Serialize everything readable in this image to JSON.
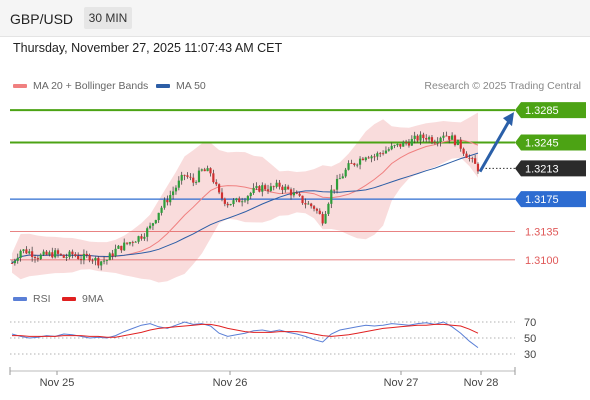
{
  "header": {
    "pair": "GBP/USD",
    "timeframe": "30 MIN"
  },
  "datetime": "Thursday, November 27, 2025 11:07:43 AM CET",
  "legend": {
    "ma20_label": "MA 20 + Bollinger Bands",
    "ma50_label": "MA 50",
    "rsi_label": "RSI",
    "ma9_label": "9MA"
  },
  "credit": "Research © 2025 Trading Central",
  "colors": {
    "resistance": "#4ca314",
    "support": "#2d6cd1",
    "target_support": "#e05a5a",
    "current": "#2b2b2b",
    "arrow": "#2a5fa8",
    "bollinger": "#f7d0d0",
    "ma20": "#f08080",
    "ma50": "#2d5ea6",
    "rsi": "#5a7fd6",
    "rsi_ma": "#e02020"
  },
  "chart_data": [
    {
      "type": "candlestick",
      "x_labels": [
        "Nov 25",
        "Nov 26",
        "Nov 27",
        "Nov 28"
      ],
      "price_levels": [
        {
          "value": 1.3285,
          "label": "1.3285",
          "kind": "resistance"
        },
        {
          "value": 1.3245,
          "label": "1.3245",
          "kind": "resistance"
        },
        {
          "value": 1.3213,
          "label": "1.3213",
          "kind": "current"
        },
        {
          "value": 1.3175,
          "label": "1.3175",
          "kind": "pivot"
        },
        {
          "value": 1.3135,
          "label": "1.3135",
          "kind": "support"
        },
        {
          "value": 1.31,
          "label": "1.3100",
          "kind": "support"
        }
      ],
      "ylim": [
        1.3085,
        1.3295
      ],
      "series": [
        {
          "name": "MA 20 + Bollinger Bands"
        },
        {
          "name": "MA 50"
        }
      ],
      "price_path": [
        1.3096,
        1.3112,
        1.311,
        1.3104,
        1.3106,
        1.3108,
        1.3103,
        1.3107,
        1.3102,
        1.3104,
        1.3098,
        1.31,
        1.3112,
        1.3118,
        1.3124,
        1.313,
        1.314,
        1.316,
        1.3175,
        1.319,
        1.3205,
        1.3196,
        1.321,
        1.3208,
        1.318,
        1.317,
        1.3172,
        1.3178,
        1.3185,
        1.319,
        1.3188,
        1.3192,
        1.3186,
        1.3178,
        1.317,
        1.3165,
        1.315,
        1.3185,
        1.32,
        1.3215,
        1.3222,
        1.323,
        1.3228,
        1.3234,
        1.3238,
        1.3242,
        1.3246,
        1.325,
        1.3252,
        1.3248,
        1.3256,
        1.325,
        1.324,
        1.3225,
        1.3213
      ]
    },
    {
      "type": "line",
      "series": [
        {
          "name": "RSI",
          "values": [
            55,
            52,
            50,
            51,
            53,
            52,
            55,
            54,
            52,
            50,
            51,
            50,
            53,
            58,
            62,
            66,
            68,
            64,
            62,
            66,
            70,
            67,
            68,
            65,
            56,
            52,
            54,
            56,
            59,
            60,
            58,
            60,
            57,
            55,
            52,
            48,
            45,
            55,
            60,
            62,
            64,
            66,
            65,
            66,
            68,
            67,
            66,
            68,
            69,
            67,
            70,
            64,
            56,
            46,
            38
          ]
        },
        {
          "name": "9MA",
          "values": [
            53,
            53,
            52,
            52,
            52,
            52,
            53,
            53,
            53,
            52,
            52,
            51,
            51,
            53,
            55,
            57,
            60,
            62,
            63,
            64,
            65,
            66,
            67,
            67,
            65,
            62,
            60,
            58,
            57,
            57,
            57,
            58,
            58,
            58,
            57,
            55,
            53,
            52,
            53,
            54,
            56,
            58,
            60,
            62,
            63,
            64,
            65,
            66,
            66,
            67,
            67,
            66,
            65,
            61,
            56
          ]
        }
      ],
      "levels": [
        70,
        50,
        30
      ],
      "ylim": [
        20,
        80
      ]
    }
  ]
}
